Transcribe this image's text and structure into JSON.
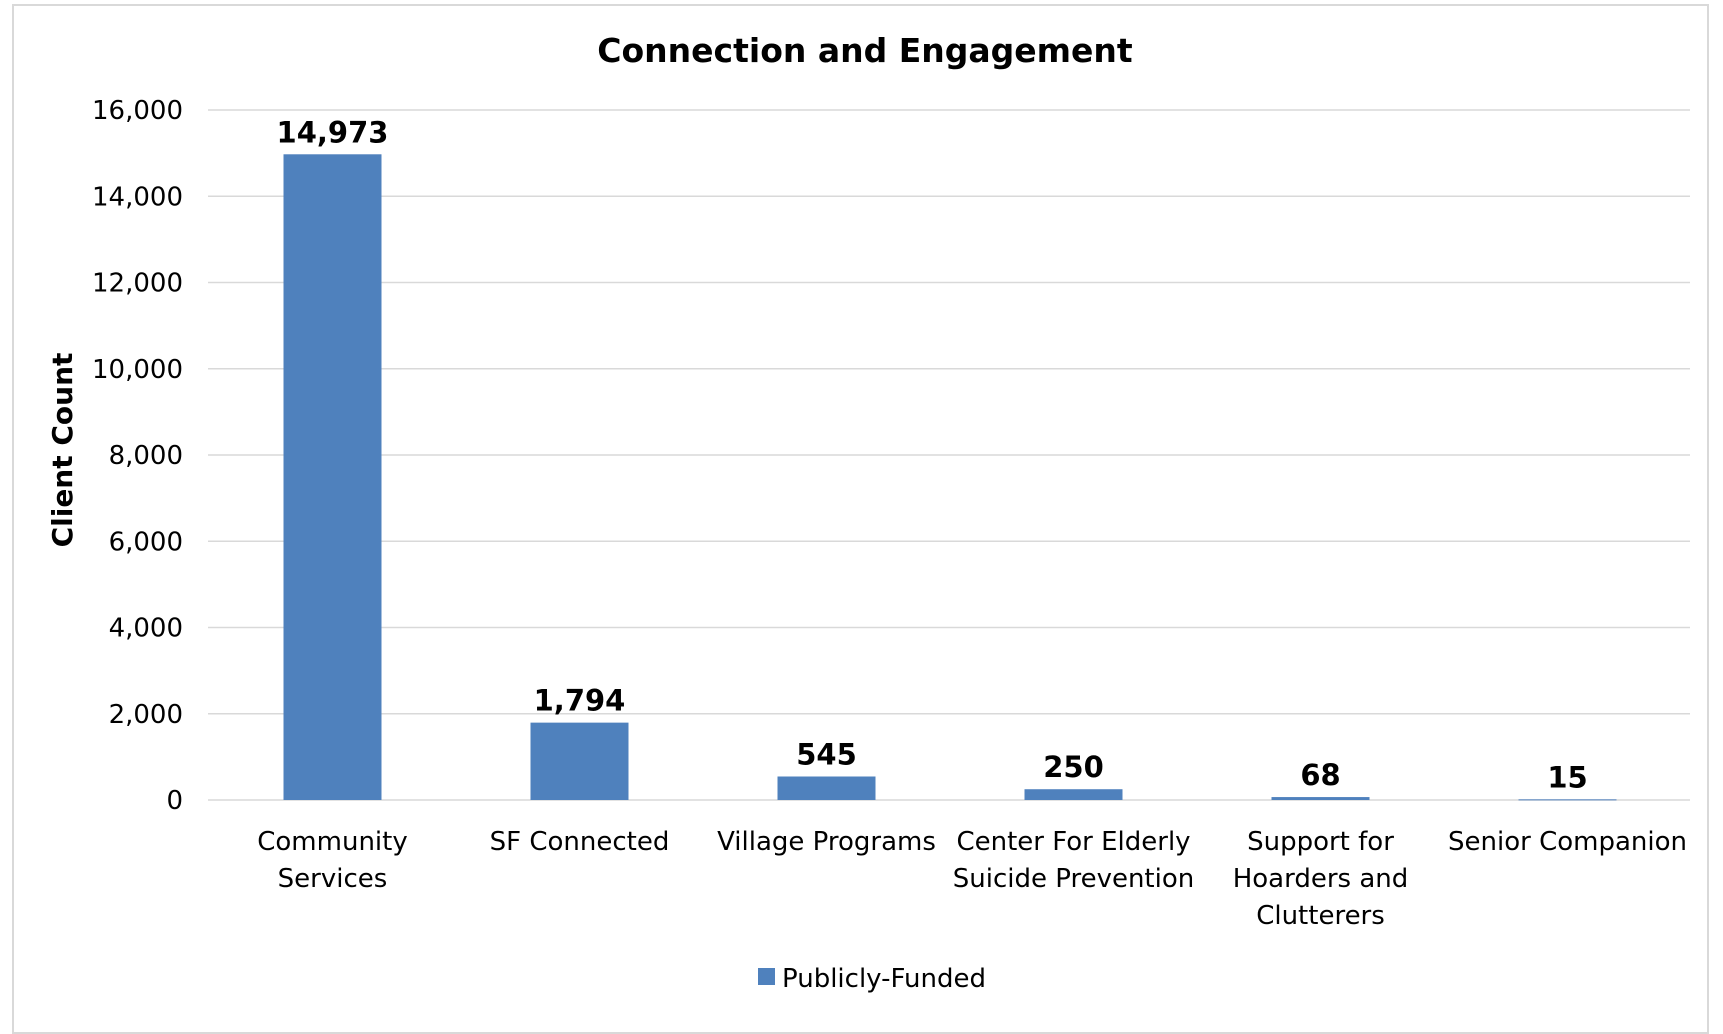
{
  "chart_data": {
    "type": "bar",
    "title": "Connection and Engagement",
    "xlabel": "",
    "ylabel": "Client Count",
    "ylim": [
      0,
      16000
    ],
    "yticks": [
      0,
      2000,
      4000,
      6000,
      8000,
      10000,
      12000,
      14000,
      16000
    ],
    "ytick_labels": [
      "0",
      "2,000",
      "4,000",
      "6,000",
      "8,000",
      "10,000",
      "12,000",
      "14,000",
      "16,000"
    ],
    "grid": true,
    "legend_position": "bottom",
    "categories": [
      [
        "Community",
        "Services"
      ],
      [
        "SF Connected"
      ],
      [
        "Village Programs"
      ],
      [
        "Center For Elderly",
        "Suicide Prevention"
      ],
      [
        "Support for",
        "Hoarders and",
        "Clutterers"
      ],
      [
        "Senior Companion"
      ]
    ],
    "series": [
      {
        "name": "Publicly-Funded",
        "color": "#4f81bd",
        "values": [
          14973,
          1794,
          545,
          250,
          68,
          15
        ],
        "data_labels": [
          "14,973",
          "1,794",
          "545",
          "250",
          "68",
          "15"
        ]
      }
    ]
  }
}
